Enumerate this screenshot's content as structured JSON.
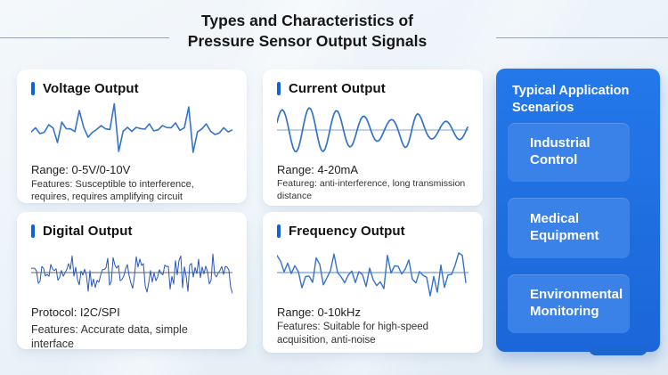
{
  "title": {
    "line1": "Types and Characteristics of",
    "line2": "Pressure Sensor Output Signals"
  },
  "cards": [
    {
      "title": "Voltage Output",
      "spec": "Range: 0-5V/0-10V",
      "features": "Features: Susceptible to interference, requires, requires amplifying circuit",
      "waveform": "ecg"
    },
    {
      "title": "Current Output",
      "spec": "Range: 4-20mA",
      "features": "Featureg: anti-interference, long transmission distance",
      "waveform": "smooth"
    },
    {
      "title": "Digital Output",
      "spec": "Protocol: I2C/SPI",
      "features": "Features: Accurate data, simple interface",
      "waveform": "dense"
    },
    {
      "title": "Frequency Output",
      "spec": "Range: 0-10kHz",
      "features": "Features: Suitable for high-speed acquisition, anti-noise",
      "waveform": "zigzag"
    }
  ],
  "panel": {
    "title": "Typical Application Scenarios",
    "items": [
      {
        "label": "Industrial Control"
      },
      {
        "label": "Medical Equipment"
      },
      {
        "label": "Environmental Monitoring"
      }
    ]
  },
  "colors": {
    "accent_blue": "#1161d9",
    "panel_blue": "#1f6fe2",
    "button_blue": "#3b82e8",
    "wave_blue": "#3672c8",
    "wave_dark": "#2a56b5",
    "midline_light": "#7aa6dd",
    "midline_dark": "#1d2b47",
    "midline_mid": "#4d84d6"
  }
}
